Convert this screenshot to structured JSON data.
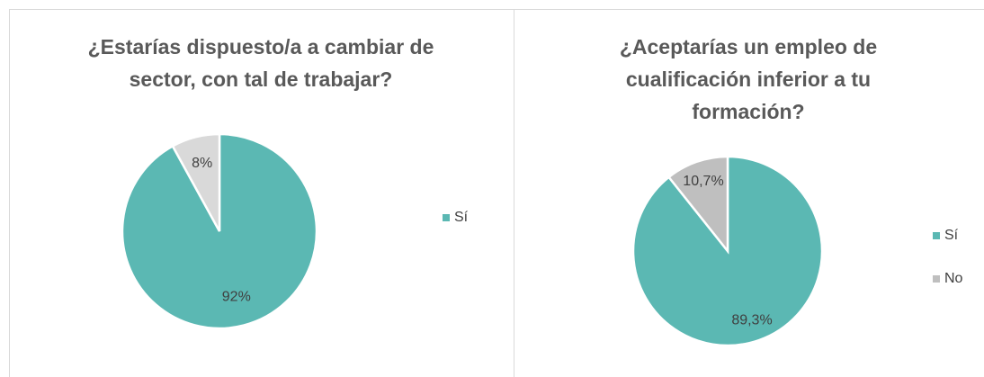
{
  "chart_data": [
    {
      "type": "pie",
      "title": "¿Estarías dispuesto/a a cambiar de sector, con tal de trabajar?",
      "categories": [
        "Sí",
        null
      ],
      "values": [
        92,
        8
      ],
      "value_labels": [
        "92%",
        "8%"
      ],
      "colors": [
        "#5bb8b3",
        "#d9d9d9"
      ],
      "legend": "right"
    },
    {
      "type": "pie",
      "title": "¿Aceptarías un empleo de cualificación inferior a tu formación?",
      "categories": [
        "Sí",
        "No"
      ],
      "values": [
        89.3,
        10.7
      ],
      "value_labels": [
        "89,3%",
        "10,7%"
      ],
      "colors": [
        "#5bb8b3",
        "#bfbfbf"
      ],
      "legend": "right"
    }
  ]
}
